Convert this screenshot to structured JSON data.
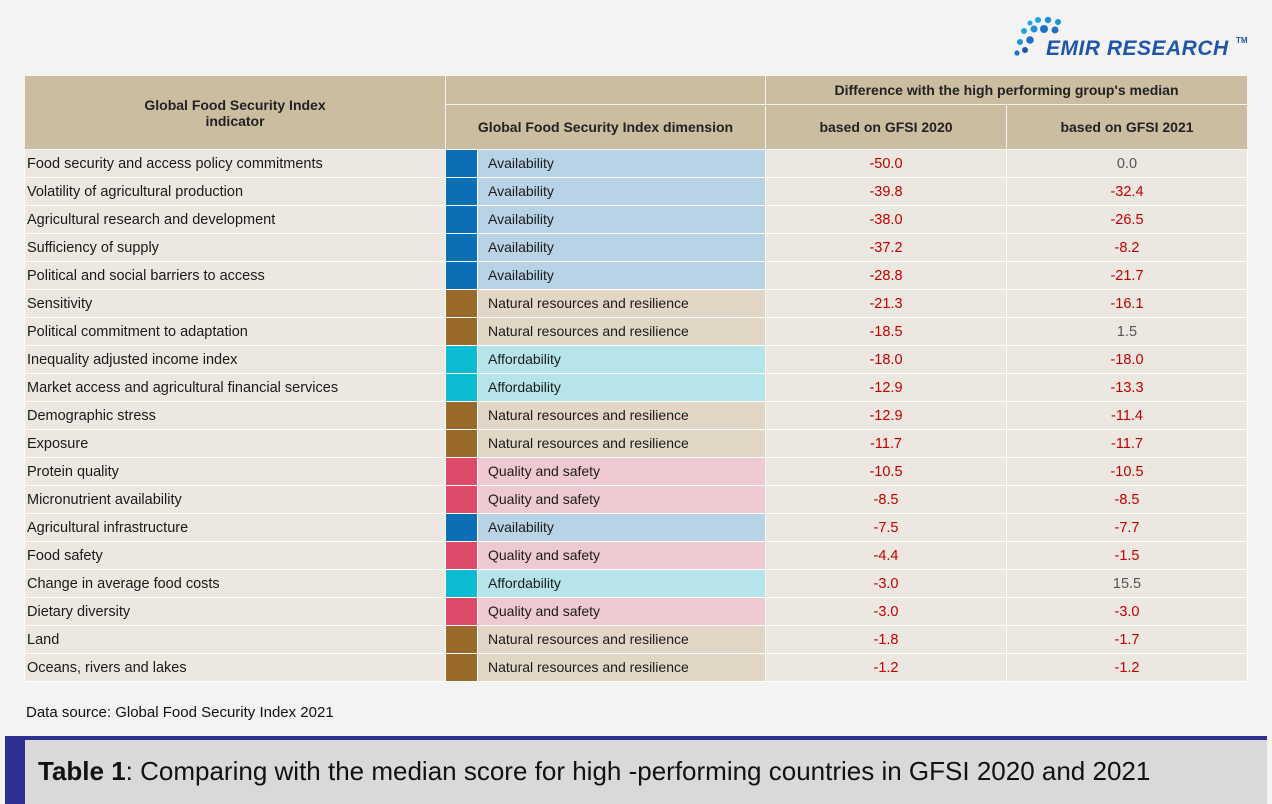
{
  "brand": {
    "name": "EMIR RESEARCH",
    "tm": "TM"
  },
  "colors": {
    "Availability": {
      "swatch": "#0a6fb4",
      "fill": "#b8d3e6"
    },
    "Natural resources and resilience": {
      "swatch": "#9a6a2a",
      "fill": "#e2d6c6"
    },
    "Affordability": {
      "swatch": "#0bbcd2",
      "fill": "#b5e5ea"
    },
    "Quality and safety": {
      "swatch": "#dd4a6a",
      "fill": "#efc9d1"
    },
    "negative_value": "#c00000",
    "non_negative_value": "#555555",
    "header_bg": "#cbbd9f",
    "caption_accent": "#2e3192"
  },
  "chart_data": {
    "type": "table",
    "columns": {
      "indicator": "Global Food Security Index indicator",
      "dimension": "Global Food Security Index dimension",
      "group_header": "Difference with the high performing group's median",
      "gfsi2020": "based on GFSI 2020",
      "gfsi2021": "based on GFSI 2021"
    },
    "rows": [
      {
        "indicator": "Food security and access policy commitments",
        "dimension": "Availability",
        "gfsi2020": "-50.0",
        "gfsi2021": "0.0"
      },
      {
        "indicator": "Volatility of agricultural production",
        "dimension": "Availability",
        "gfsi2020": "-39.8",
        "gfsi2021": "-32.4"
      },
      {
        "indicator": "Agricultural research and development",
        "dimension": "Availability",
        "gfsi2020": "-38.0",
        "gfsi2021": "-26.5"
      },
      {
        "indicator": "Sufficiency of supply",
        "dimension": "Availability",
        "gfsi2020": "-37.2",
        "gfsi2021": "-8.2"
      },
      {
        "indicator": "Political and social barriers to access",
        "dimension": "Availability",
        "gfsi2020": "-28.8",
        "gfsi2021": "-21.7"
      },
      {
        "indicator": "Sensitivity",
        "dimension": "Natural resources and resilience",
        "gfsi2020": "-21.3",
        "gfsi2021": "-16.1"
      },
      {
        "indicator": "Political commitment to adaptation",
        "dimension": "Natural resources and resilience",
        "gfsi2020": "-18.5",
        "gfsi2021": "1.5"
      },
      {
        "indicator": "Inequality adjusted income index",
        "dimension": "Affordability",
        "gfsi2020": "-18.0",
        "gfsi2021": "-18.0"
      },
      {
        "indicator": "Market access and agricultural financial services",
        "dimension": "Affordability",
        "gfsi2020": "-12.9",
        "gfsi2021": "-13.3"
      },
      {
        "indicator": "Demographic stress",
        "dimension": "Natural resources and resilience",
        "gfsi2020": "-12.9",
        "gfsi2021": "-11.4"
      },
      {
        "indicator": "Exposure",
        "dimension": "Natural resources and resilience",
        "gfsi2020": "-11.7",
        "gfsi2021": "-11.7"
      },
      {
        "indicator": "Protein quality",
        "dimension": "Quality and safety",
        "gfsi2020": "-10.5",
        "gfsi2021": "-10.5"
      },
      {
        "indicator": "Micronutrient availability",
        "dimension": "Quality and safety",
        "gfsi2020": "-8.5",
        "gfsi2021": "-8.5"
      },
      {
        "indicator": "Agricultural infrastructure",
        "dimension": "Availability",
        "gfsi2020": "-7.5",
        "gfsi2021": "-7.7"
      },
      {
        "indicator": "Food safety",
        "dimension": "Quality and safety",
        "gfsi2020": "-4.4",
        "gfsi2021": "-1.5"
      },
      {
        "indicator": "Change in average food costs",
        "dimension": "Affordability",
        "gfsi2020": "-3.0",
        "gfsi2021": "15.5"
      },
      {
        "indicator": "Dietary diversity",
        "dimension": "Quality and safety",
        "gfsi2020": "-3.0",
        "gfsi2021": "-3.0"
      },
      {
        "indicator": "Land",
        "dimension": "Natural resources and resilience",
        "gfsi2020": "-1.8",
        "gfsi2021": "-1.7"
      },
      {
        "indicator": "Oceans, rivers and lakes",
        "dimension": "Natural resources and resilience",
        "gfsi2020": "-1.2",
        "gfsi2021": "-1.2"
      }
    ]
  },
  "source": "Data source: Global Food Security Index 2021",
  "caption": {
    "label": "Table 1",
    "text": ": Comparing with the median score for high  -performing countries in GFSI 2020 and 2021"
  }
}
